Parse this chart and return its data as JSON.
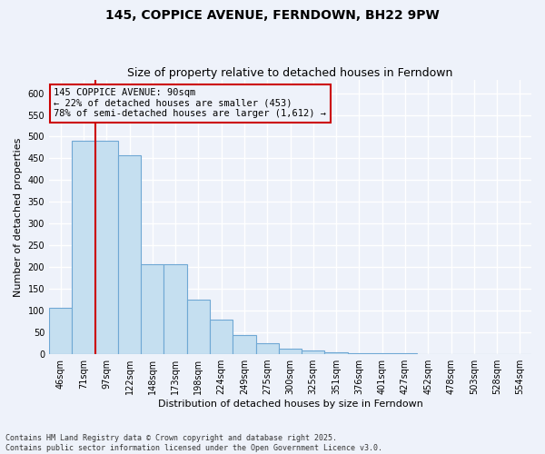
{
  "title": "145, COPPICE AVENUE, FERNDOWN, BH22 9PW",
  "subtitle": "Size of property relative to detached houses in Ferndown",
  "xlabel": "Distribution of detached houses by size in Ferndown",
  "ylabel": "Number of detached properties",
  "footnote": "Contains HM Land Registry data © Crown copyright and database right 2025.\nContains public sector information licensed under the Open Government Licence v3.0.",
  "categories": [
    "46sqm",
    "71sqm",
    "97sqm",
    "122sqm",
    "148sqm",
    "173sqm",
    "198sqm",
    "224sqm",
    "249sqm",
    "275sqm",
    "300sqm",
    "325sqm",
    "351sqm",
    "376sqm",
    "401sqm",
    "427sqm",
    "452sqm",
    "478sqm",
    "503sqm",
    "528sqm",
    "554sqm"
  ],
  "values": [
    107,
    490,
    490,
    458,
    207,
    207,
    125,
    80,
    45,
    25,
    12,
    8,
    5,
    3,
    2,
    2,
    1,
    1,
    1,
    1,
    1
  ],
  "bar_color": "#c5dff0",
  "bar_edge_color": "#6fa8d4",
  "property_label": "145 COPPICE AVENUE: 90sqm",
  "annotation_line1": "← 22% of detached houses are smaller (453)",
  "annotation_line2": "78% of semi-detached houses are larger (1,612) →",
  "annotation_box_color": "#cc0000",
  "ylim": [
    0,
    630
  ],
  "yticks": [
    0,
    50,
    100,
    150,
    200,
    250,
    300,
    350,
    400,
    450,
    500,
    550,
    600
  ],
  "background_color": "#eef2fa",
  "grid_color": "#ffffff",
  "title_fontsize": 10,
  "subtitle_fontsize": 9,
  "axis_label_fontsize": 8,
  "tick_fontsize": 7,
  "annotation_fontsize": 7.5
}
